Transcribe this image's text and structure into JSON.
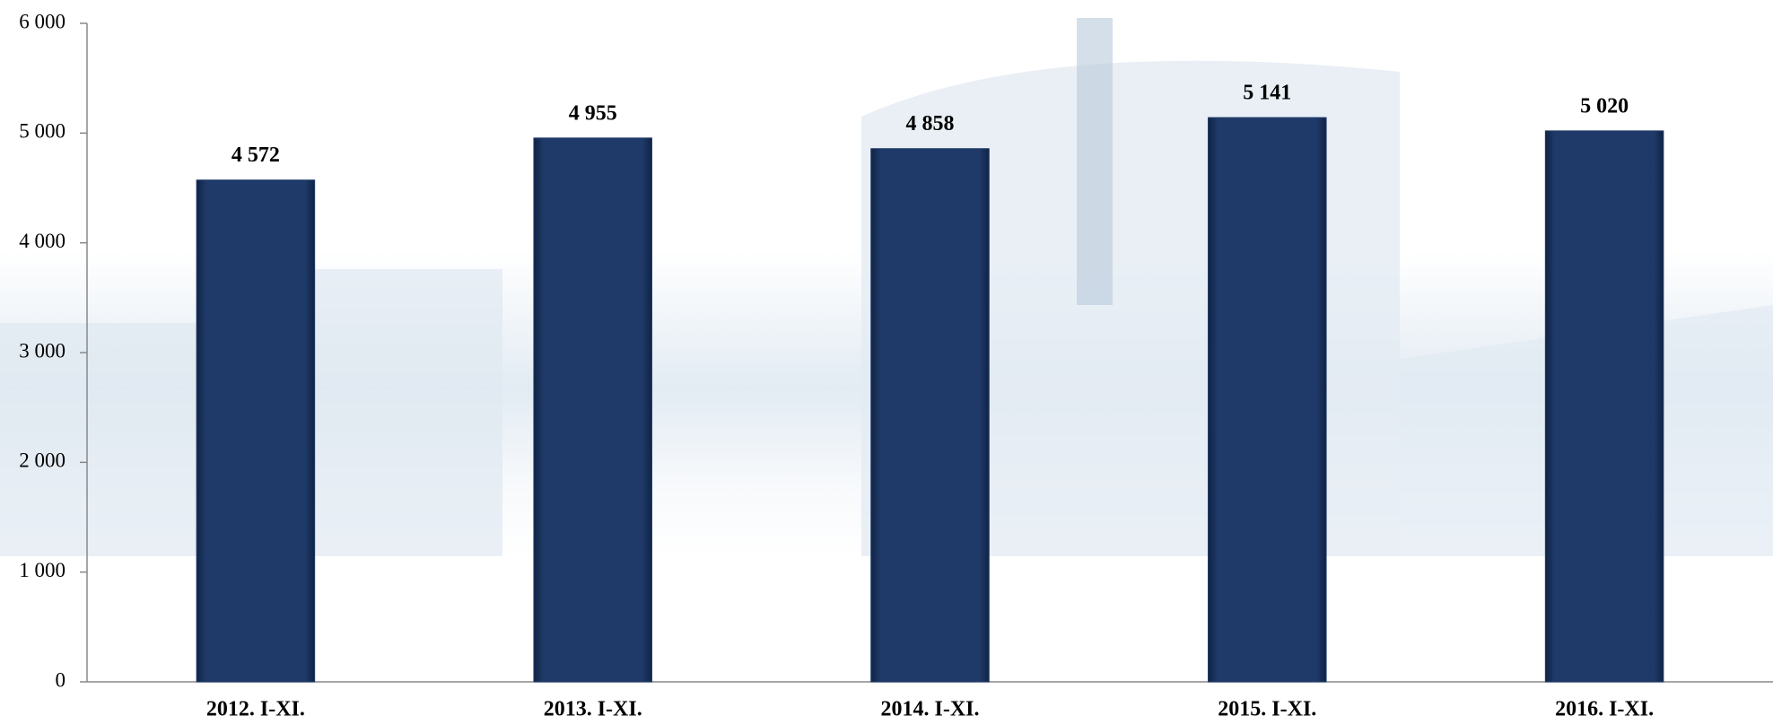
{
  "chart_data": {
    "type": "bar",
    "categories": [
      "2012. I-XI.",
      "2013. I-XI.",
      "2014. I-XI.",
      "2015. I-XI.",
      "2016. I-XI."
    ],
    "values": [
      4572,
      4955,
      4858,
      5141,
      5020
    ],
    "value_labels": [
      "4 572",
      "4 955",
      "4 858",
      "5 141",
      "5 020"
    ],
    "color": "#1f3a68",
    "ylim": [
      0,
      6000
    ],
    "yticks": [
      {
        "value": 0,
        "label": "0"
      },
      {
        "value": 1000,
        "label": "1 000"
      },
      {
        "value": 2000,
        "label": "2 000"
      },
      {
        "value": 3000,
        "label": "3 000"
      },
      {
        "value": 4000,
        "label": "4 000"
      },
      {
        "value": 5000,
        "label": "5 000"
      },
      {
        "value": 6000,
        "label": "6 000"
      }
    ]
  }
}
